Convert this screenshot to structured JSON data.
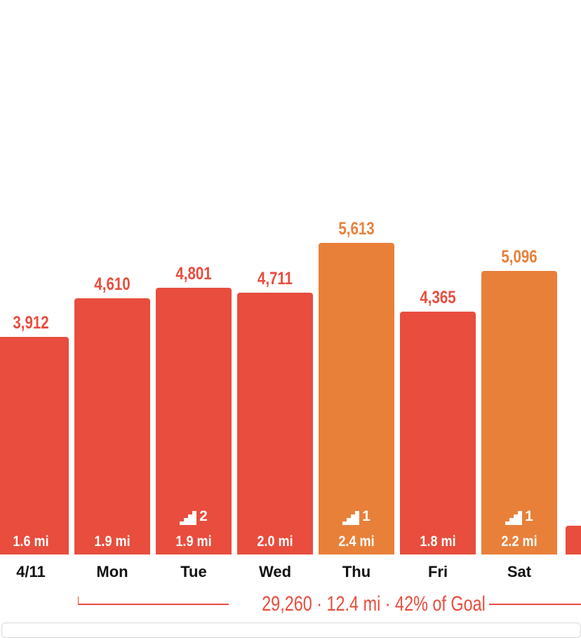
{
  "colors": {
    "normal": "#e84d3d",
    "highlight": "#e8803a",
    "text": "#111111"
  },
  "chart_data": {
    "type": "bar",
    "categories": [
      "4/11",
      "Mon",
      "Tue",
      "Wed",
      "Thu",
      "Fri",
      "Sat"
    ],
    "values": [
      3912,
      4610,
      4801,
      4711,
      5613,
      4365,
      5096
    ],
    "value_labels": [
      "3,912",
      "4,610",
      "4,801",
      "4,711",
      "5,613",
      "4,365",
      "5,096"
    ],
    "distances": [
      "1.6 mi",
      "1.9 mi",
      "1.9 mi",
      "2.0 mi",
      "2.4 mi",
      "1.8 mi",
      "2.2 mi"
    ],
    "floors": [
      null,
      null,
      "2",
      null,
      "1",
      null,
      "1"
    ],
    "highlighted": [
      false,
      false,
      false,
      false,
      true,
      false,
      true
    ],
    "partial_next_value_visible": true,
    "summary": "29,260 · 12.4 mi · 42% of Goal"
  }
}
